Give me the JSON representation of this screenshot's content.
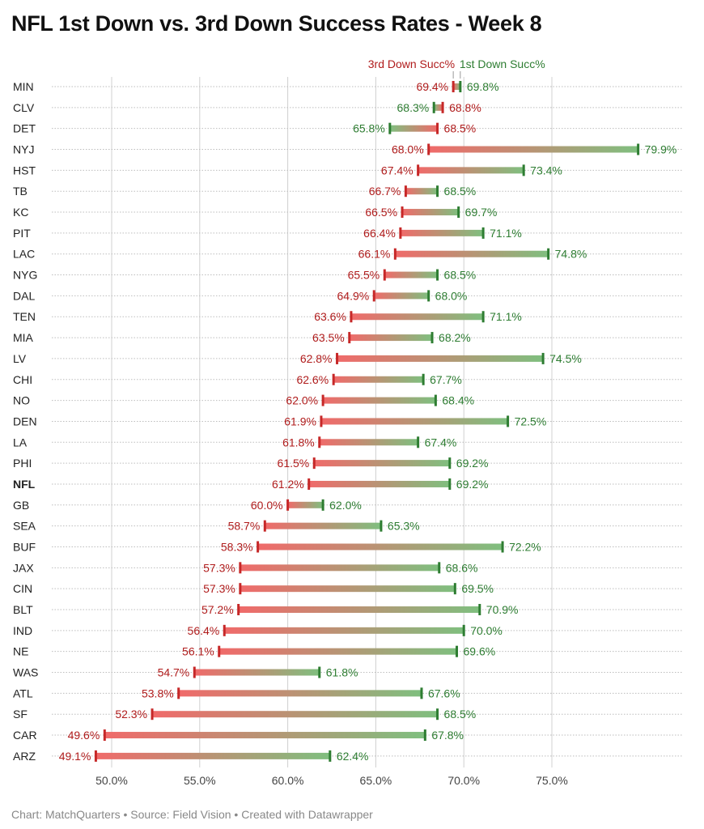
{
  "title": "NFL 1st Down vs. 3rd Down Success Rates - Week 8",
  "footer": "Chart: MatchQuarters • Source: Field Vision • Created with Datawrapper",
  "chart_data": {
    "type": "dumbbell",
    "title": "NFL 1st Down vs. 3rd Down Success Rates - Week 8",
    "xlim": [
      45.5,
      80
    ],
    "xticks": [
      50,
      55,
      60,
      65,
      70,
      75
    ],
    "tick_labels": [
      "50.0%",
      "55.0%",
      "60.0%",
      "65.0%",
      "70.0%",
      "75.0%"
    ],
    "grid": true,
    "colors": {
      "third": "#b01c1c",
      "first": "#2e7d32"
    },
    "series": [
      {
        "name": "3rd Down Succ%",
        "key": "third"
      },
      {
        "name": "1st Down Succ%",
        "key": "first"
      }
    ],
    "rows": [
      {
        "team": "MIN",
        "third": 69.4,
        "first": 69.8
      },
      {
        "team": "CLV",
        "third": 68.8,
        "first": 68.3
      },
      {
        "team": "DET",
        "third": 68.5,
        "first": 65.8
      },
      {
        "team": "NYJ",
        "third": 68.0,
        "first": 79.9
      },
      {
        "team": "HST",
        "third": 67.4,
        "first": 73.4
      },
      {
        "team": "TB",
        "third": 66.7,
        "first": 68.5
      },
      {
        "team": "KC",
        "third": 66.5,
        "first": 69.7
      },
      {
        "team": "PIT",
        "third": 66.4,
        "first": 71.1
      },
      {
        "team": "LAC",
        "third": 66.1,
        "first": 74.8
      },
      {
        "team": "NYG",
        "third": 65.5,
        "first": 68.5
      },
      {
        "team": "DAL",
        "third": 64.9,
        "first": 68.0
      },
      {
        "team": "TEN",
        "third": 63.6,
        "first": 71.1
      },
      {
        "team": "MIA",
        "third": 63.5,
        "first": 68.2
      },
      {
        "team": "LV",
        "third": 62.8,
        "first": 74.5
      },
      {
        "team": "CHI",
        "third": 62.6,
        "first": 67.7
      },
      {
        "team": "NO",
        "third": 62.0,
        "first": 68.4
      },
      {
        "team": "DEN",
        "third": 61.9,
        "first": 72.5
      },
      {
        "team": "LA",
        "third": 61.8,
        "first": 67.4
      },
      {
        "team": "PHI",
        "third": 61.5,
        "first": 69.2
      },
      {
        "team": "NFL",
        "third": 61.2,
        "first": 69.2,
        "bold": true
      },
      {
        "team": "GB",
        "third": 60.0,
        "first": 62.0
      },
      {
        "team": "SEA",
        "third": 58.7,
        "first": 65.3
      },
      {
        "team": "BUF",
        "third": 58.3,
        "first": 72.2
      },
      {
        "team": "JAX",
        "third": 57.3,
        "first": 68.6
      },
      {
        "team": "CIN",
        "third": 57.3,
        "first": 69.5
      },
      {
        "team": "BLT",
        "third": 57.2,
        "first": 70.9
      },
      {
        "team": "IND",
        "third": 56.4,
        "first": 70.0
      },
      {
        "team": "NE",
        "third": 56.1,
        "first": 69.6
      },
      {
        "team": "WAS",
        "third": 54.7,
        "first": 61.8
      },
      {
        "team": "ATL",
        "third": 53.8,
        "first": 67.6
      },
      {
        "team": "SF",
        "third": 52.3,
        "first": 68.5
      },
      {
        "team": "CAR",
        "third": 49.6,
        "first": 67.8
      },
      {
        "team": "ARZ",
        "third": 49.1,
        "first": 62.4
      }
    ]
  }
}
